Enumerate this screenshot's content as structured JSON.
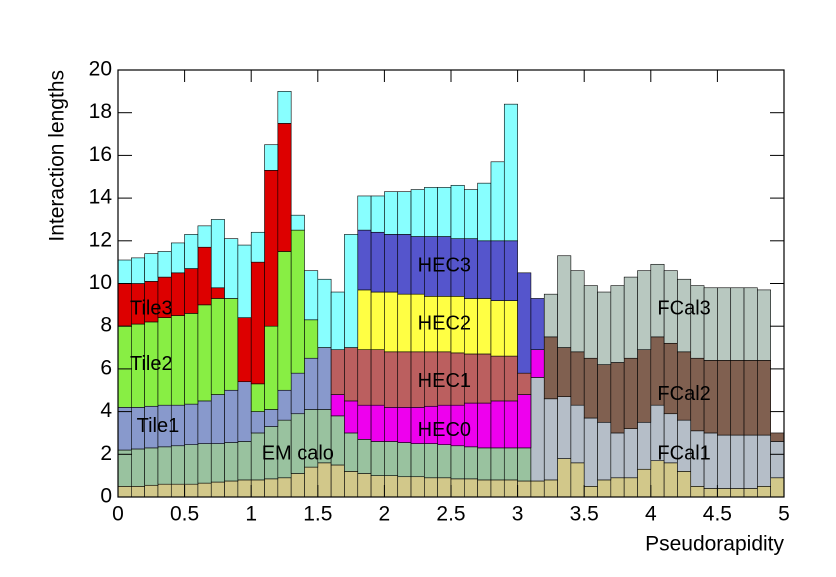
{
  "chart_data": {
    "type": "histogram",
    "stacked": true,
    "xlabel": "Pseudorapidity",
    "ylabel": "Interaction lengths",
    "bins": [
      0,
      0.1,
      0.2,
      0.3,
      0.4,
      0.5,
      0.6,
      0.7,
      0.8,
      0.9,
      1.0,
      1.1,
      1.2,
      1.3,
      1.4,
      1.5,
      1.6,
      1.7,
      1.8,
      1.9,
      2.0,
      2.1,
      2.2,
      2.3,
      2.4,
      2.5,
      2.6,
      2.7,
      2.8,
      2.9,
      3.0,
      3.1,
      3.2,
      3.3,
      3.4,
      3.5,
      3.6,
      3.7,
      3.8,
      3.9,
      4.0,
      4.1,
      4.2,
      4.3,
      4.4,
      4.5,
      4.6,
      4.7,
      4.8,
      4.9,
      5.0
    ],
    "xlim": [
      0,
      5
    ],
    "xticks": [
      0,
      0.5,
      1,
      1.5,
      2,
      2.5,
      3,
      3.5,
      4,
      4.5,
      5
    ],
    "ylim": [
      0,
      20
    ],
    "yticks": [
      0,
      2,
      4,
      6,
      8,
      10,
      12,
      14,
      16,
      18,
      20
    ],
    "series": [
      {
        "color": "#d2c88a",
        "values": [
          0.5,
          0.5,
          0.55,
          0.6,
          0.6,
          0.6,
          0.65,
          0.7,
          0.75,
          0.8,
          0.8,
          0.85,
          0.9,
          1.1,
          1.4,
          1.6,
          1.5,
          1.2,
          1.1,
          1.0,
          1.0,
          0.95,
          0.95,
          0.9,
          0.9,
          0.85,
          0.85,
          0.8,
          0.8,
          0.8,
          0.75,
          0.75,
          0.8,
          1.8,
          1.6,
          0.5,
          0.8,
          0.9,
          0.9,
          1.3,
          1.7,
          1.6,
          1.2,
          0.5,
          0.4,
          0.4,
          0.4,
          0.4,
          0.5,
          0.9
        ]
      },
      {
        "name": "EM calo",
        "color": "#99c29f",
        "values": [
          1.7,
          1.75,
          1.75,
          1.75,
          1.8,
          1.85,
          1.85,
          1.8,
          1.8,
          1.8,
          2.2,
          2.45,
          2.7,
          2.8,
          2.7,
          2.5,
          2.3,
          1.8,
          1.6,
          1.6,
          1.6,
          1.6,
          1.55,
          1.6,
          1.55,
          1.55,
          1.5,
          1.5,
          1.5,
          1.5,
          1.55,
          0,
          0,
          0,
          0,
          0,
          0,
          0,
          0,
          0,
          0,
          0,
          0,
          0,
          0,
          0,
          0,
          0,
          0,
          0
        ]
      },
      {
        "name": "Tile1",
        "color": "#8899cc",
        "values": [
          2.0,
          1.95,
          1.95,
          1.95,
          1.9,
          1.9,
          2.0,
          2.3,
          2.45,
          2.8,
          1.0,
          0.8,
          1.4,
          1.9,
          2.4,
          2.9,
          0,
          0,
          0,
          0,
          0,
          0,
          0,
          0,
          0,
          0,
          0,
          0,
          0,
          0,
          0,
          0,
          0,
          0,
          0,
          0,
          0,
          0,
          0,
          0,
          0,
          0,
          0,
          0,
          0,
          0,
          0,
          0,
          0,
          0
        ]
      },
      {
        "name": "Tile2",
        "color": "#88ee44",
        "values": [
          3.8,
          3.9,
          3.95,
          4.1,
          4.2,
          4.25,
          4.5,
          4.5,
          4.3,
          0,
          1.3,
          3.9,
          6.5,
          6.7,
          1.8,
          0,
          0,
          0,
          0,
          0,
          0,
          0,
          0,
          0,
          0,
          0,
          0,
          0,
          0,
          0,
          0,
          0,
          0,
          0,
          0,
          0,
          0,
          0,
          0,
          0,
          0,
          0,
          0,
          0,
          0,
          0,
          0,
          0,
          0,
          0
        ]
      },
      {
        "name": "Tile3",
        "color": "#dd0000",
        "values": [
          2.0,
          1.9,
          1.9,
          1.9,
          2.0,
          2.1,
          2.7,
          0.5,
          0,
          3.0,
          5.7,
          7.3,
          6.0,
          0,
          0,
          0,
          0,
          0,
          0,
          0,
          0,
          0,
          0,
          0,
          0,
          0,
          0,
          0,
          0,
          0,
          0,
          0,
          0,
          0,
          0,
          0,
          0,
          0,
          0,
          0,
          0,
          0,
          0,
          0,
          0,
          0,
          0,
          0,
          0,
          0
        ]
      },
      {
        "name": "FCal1",
        "color": "#b5bec8",
        "values": [
          0,
          0,
          0,
          0,
          0,
          0,
          0,
          0,
          0,
          0,
          0,
          0,
          0,
          0,
          0,
          0,
          0,
          0,
          0,
          0,
          0,
          0,
          0,
          0,
          0,
          0,
          0,
          0,
          0,
          0,
          0,
          4.85,
          3.8,
          2.9,
          2.7,
          3.2,
          2.7,
          2.1,
          2.3,
          2.2,
          2.6,
          2.3,
          2.4,
          2.6,
          2.6,
          2.5,
          2.5,
          2.5,
          2.4,
          1.7
        ]
      },
      {
        "name": "HEC0",
        "color": "#ee00ee",
        "values": [
          0,
          0,
          0,
          0,
          0,
          0,
          0,
          0,
          0,
          0,
          0,
          0,
          0,
          0,
          0,
          0,
          1.0,
          1.5,
          1.6,
          1.7,
          1.6,
          1.65,
          1.7,
          1.75,
          1.85,
          1.9,
          2.05,
          2.1,
          2.2,
          2.2,
          2.5,
          1.3,
          0,
          0,
          0,
          0,
          0,
          0,
          0,
          0,
          0,
          0,
          0,
          0,
          0,
          0,
          0,
          0,
          0,
          0
        ]
      },
      {
        "name": "HEC1",
        "color": "#bb5f5f",
        "values": [
          0,
          0,
          0,
          0,
          0,
          0,
          0,
          0,
          0,
          0,
          0,
          0,
          0,
          0,
          0,
          0,
          2.1,
          2.5,
          2.6,
          2.6,
          2.6,
          2.6,
          2.6,
          2.55,
          2.5,
          2.45,
          2.3,
          2.3,
          2.1,
          2.1,
          1.0,
          0,
          0,
          0,
          0,
          0,
          0,
          0,
          0,
          0,
          0,
          0,
          0,
          0,
          0,
          0,
          0,
          0,
          0,
          0
        ]
      },
      {
        "name": "HEC2",
        "color": "#ffff44",
        "values": [
          0,
          0,
          0,
          0,
          0,
          0,
          0,
          0,
          0,
          0,
          0,
          0,
          0,
          0,
          0,
          0,
          0,
          0,
          2.8,
          2.7,
          2.8,
          2.7,
          2.7,
          2.6,
          2.6,
          2.65,
          2.6,
          2.6,
          2.6,
          2.6,
          0,
          0,
          0,
          0,
          0,
          0,
          0,
          0,
          0,
          0,
          0,
          0,
          0,
          0,
          0,
          0,
          0,
          0,
          0,
          0
        ]
      },
      {
        "name": "HEC3",
        "color": "#5555cc",
        "values": [
          0,
          0,
          0,
          0,
          0,
          0,
          0,
          0,
          0,
          0,
          0,
          0,
          0,
          0,
          0,
          0,
          0,
          0,
          2.8,
          2.8,
          2.7,
          2.8,
          2.7,
          2.8,
          2.8,
          2.7,
          2.8,
          2.7,
          2.8,
          2.8,
          4.7,
          2.4,
          0,
          0,
          0,
          0,
          0,
          0,
          0,
          0,
          0,
          0,
          0,
          0,
          0,
          0,
          0,
          0,
          0,
          0
        ]
      },
      {
        "name": "FCal2",
        "color": "#806050",
        "values": [
          0,
          0,
          0,
          0,
          0,
          0,
          0,
          0,
          0,
          0,
          0,
          0,
          0,
          0,
          0,
          0,
          0,
          0,
          0,
          0,
          0,
          0,
          0,
          0,
          0,
          0,
          0,
          0,
          0,
          0,
          0,
          0,
          2.9,
          2.3,
          2.5,
          2.8,
          2.7,
          3.3,
          3.3,
          3.4,
          3.2,
          3.3,
          3.2,
          3.4,
          3.4,
          3.5,
          3.5,
          3.5,
          3.5,
          0.4
        ]
      },
      {
        "name": "FCal3",
        "color": "#b8c8c0",
        "values": [
          0,
          0,
          0,
          0,
          0,
          0,
          0,
          0,
          0,
          0,
          0,
          0,
          0,
          0,
          0,
          0,
          0,
          0,
          0,
          0,
          0,
          0,
          0,
          0,
          0,
          0,
          0,
          0,
          0,
          0,
          0,
          0,
          2.0,
          4.3,
          3.8,
          3.4,
          3.4,
          3.6,
          3.8,
          3.7,
          3.4,
          3.4,
          3.4,
          3.4,
          3.4,
          3.4,
          3.4,
          3.4,
          3.3,
          0
        ]
      },
      {
        "color": "#88ffff",
        "values": [
          1.1,
          1.2,
          1.3,
          1.2,
          1.4,
          1.6,
          1.0,
          3.2,
          2.8,
          3.4,
          1.4,
          1.2,
          1.5,
          0.7,
          2.3,
          3.2,
          2.7,
          5.3,
          1.6,
          1.7,
          2.0,
          2.0,
          2.2,
          2.3,
          2.3,
          2.5,
          2.3,
          2.7,
          3.7,
          6.4,
          0,
          0,
          0,
          0,
          0,
          0,
          0,
          0,
          0,
          0,
          0,
          0,
          0,
          0,
          0,
          0,
          0,
          0,
          0,
          0
        ]
      }
    ]
  }
}
